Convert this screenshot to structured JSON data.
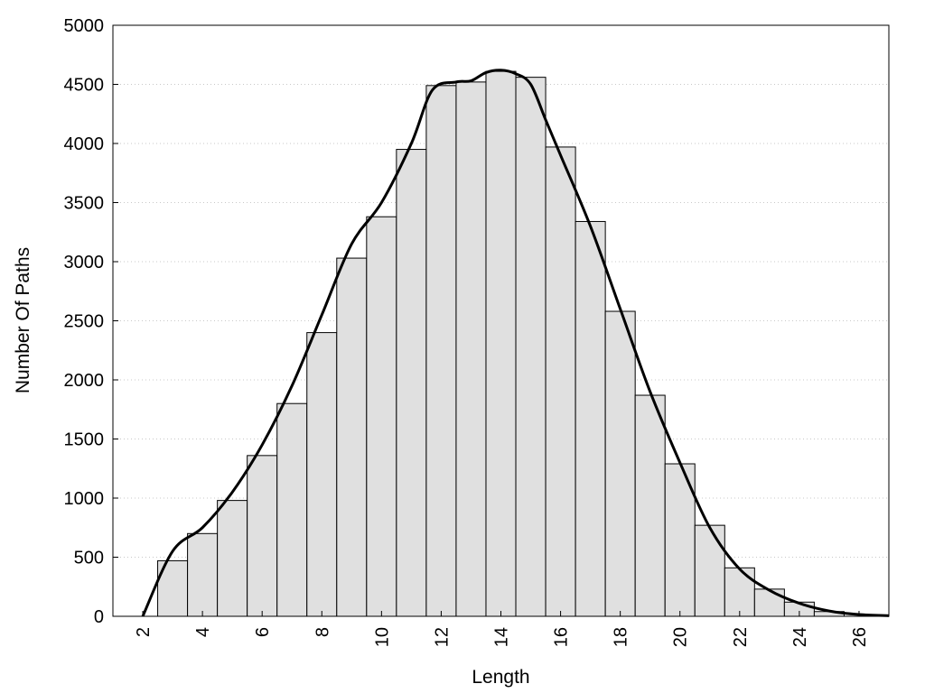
{
  "chart_data": {
    "type": "bar",
    "xlabel": "Length",
    "ylabel": "Number Of Paths",
    "xlim": [
      1,
      27
    ],
    "ylim": [
      0,
      5000
    ],
    "y_ticks": [
      0,
      500,
      1000,
      1500,
      2000,
      2500,
      3000,
      3500,
      4000,
      4500,
      5000
    ],
    "x_ticks": [
      2,
      4,
      6,
      8,
      10,
      12,
      14,
      16,
      18,
      20,
      22,
      24,
      26
    ],
    "grid": true,
    "bins": [
      {
        "start": 2.5,
        "end": 3.5,
        "value": 470
      },
      {
        "start": 3.5,
        "end": 4.5,
        "value": 700
      },
      {
        "start": 4.5,
        "end": 5.5,
        "value": 980
      },
      {
        "start": 5.5,
        "end": 6.5,
        "value": 1360
      },
      {
        "start": 6.5,
        "end": 7.5,
        "value": 1800
      },
      {
        "start": 7.5,
        "end": 8.5,
        "value": 2400
      },
      {
        "start": 8.5,
        "end": 9.5,
        "value": 3030
      },
      {
        "start": 9.5,
        "end": 10.5,
        "value": 3380
      },
      {
        "start": 10.5,
        "end": 11.5,
        "value": 3950
      },
      {
        "start": 11.5,
        "end": 12.5,
        "value": 4490
      },
      {
        "start": 12.5,
        "end": 13.5,
        "value": 4520
      },
      {
        "start": 13.5,
        "end": 14.5,
        "value": 4610
      },
      {
        "start": 14.5,
        "end": 15.5,
        "value": 4560
      },
      {
        "start": 15.5,
        "end": 16.5,
        "value": 3970
      },
      {
        "start": 16.5,
        "end": 17.5,
        "value": 3340
      },
      {
        "start": 17.5,
        "end": 18.5,
        "value": 2580
      },
      {
        "start": 18.5,
        "end": 19.5,
        "value": 1870
      },
      {
        "start": 19.5,
        "end": 20.5,
        "value": 1290
      },
      {
        "start": 20.5,
        "end": 21.5,
        "value": 770
      },
      {
        "start": 21.5,
        "end": 22.5,
        "value": 410
      },
      {
        "start": 22.5,
        "end": 23.5,
        "value": 230
      },
      {
        "start": 23.5,
        "end": 24.5,
        "value": 120
      },
      {
        "start": 24.5,
        "end": 25.5,
        "value": 40
      }
    ],
    "curve": {
      "x": [
        2,
        3,
        4,
        5,
        6,
        7,
        8,
        9,
        10,
        11,
        11.7,
        12.5,
        13,
        13.5,
        14,
        14.5,
        15,
        15.5,
        16,
        17,
        18,
        19,
        20,
        21,
        22,
        23,
        24,
        25,
        26,
        27
      ],
      "y": [
        0,
        550,
        750,
        1050,
        1450,
        1950,
        2550,
        3150,
        3500,
        4000,
        4450,
        4520,
        4530,
        4600,
        4620,
        4590,
        4500,
        4200,
        3900,
        3300,
        2600,
        1900,
        1300,
        750,
        400,
        220,
        110,
        45,
        15,
        5
      ]
    }
  }
}
